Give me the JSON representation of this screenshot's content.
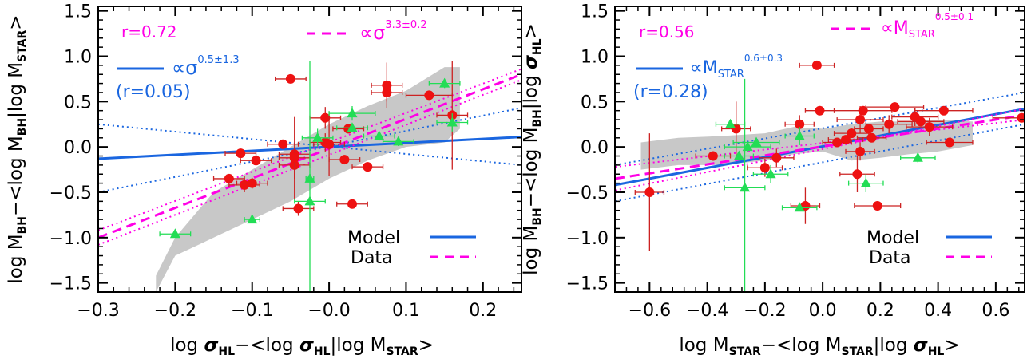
{
  "colors": {
    "model": "#1a66e0",
    "data": "#ff00e6",
    "red_points": "#ee1111",
    "red_error": "#cc2222",
    "green_points": "#22dd55",
    "band": "#c8c8c8"
  },
  "chart_data": [
    {
      "type": "scatter",
      "xlabel": "log σ_HL−<log σ_HL|log M_STAR>",
      "ylabel": "log M_BH−<log M_BH|log M_STAR>",
      "xlim": [
        -0.3,
        0.25
      ],
      "ylim": [
        -1.6,
        1.55
      ],
      "xticks": [
        -0.3,
        -0.2,
        -0.1,
        -0.0,
        0.1,
        0.2
      ],
      "xtick_labels": [
        "−0.3",
        "−0.2",
        "−0.1",
        "−0.0",
        "0.1",
        "0.2"
      ],
      "yticks": [
        -1.5,
        -1.0,
        -0.5,
        0.0,
        0.5,
        1.0,
        1.5
      ],
      "ytick_labels": [
        "−1.5",
        "−1.0",
        "−0.5",
        "0.0",
        "0.5",
        "1.0",
        "1.5"
      ],
      "annotations": {
        "r_data": "r=0.72",
        "data_slope": "∝σ",
        "data_slope_exp": "3.3±0.2",
        "model_slope": "∝σ",
        "model_slope_exp": "0.5±1.3",
        "r_model": "(r=0.05)"
      },
      "legend": {
        "position": "bottom-right",
        "entries": [
          "Model",
          "Data"
        ]
      },
      "grey_band": {
        "upper": [
          [
            -0.225,
            -1.42
          ],
          [
            -0.2,
            -1.0
          ],
          [
            -0.15,
            -0.5
          ],
          [
            -0.1,
            -0.25
          ],
          [
            -0.05,
            0.0
          ],
          [
            0.0,
            0.25
          ],
          [
            0.05,
            0.45
          ],
          [
            0.1,
            0.62
          ],
          [
            0.15,
            0.88
          ],
          [
            0.17,
            0.88
          ]
        ],
        "lower": [
          [
            0.17,
            0.2
          ],
          [
            0.15,
            0.05
          ],
          [
            0.1,
            0.0
          ],
          [
            0.05,
            -0.15
          ],
          [
            0.0,
            -0.35
          ],
          [
            -0.05,
            -0.6
          ],
          [
            -0.1,
            -0.8
          ],
          [
            -0.15,
            -1.0
          ],
          [
            -0.2,
            -1.2
          ],
          [
            -0.225,
            -1.6
          ]
        ]
      },
      "fits": {
        "data_line": {
          "x": [
            -0.3,
            0.25
          ],
          "y": [
            -1.0,
            0.8
          ]
        },
        "data_err_upper": {
          "x": [
            -0.3,
            0.25
          ],
          "y": [
            -0.92,
            0.86
          ]
        },
        "data_err_lower": {
          "x": [
            -0.3,
            0.25
          ],
          "y": [
            -1.08,
            0.74
          ]
        },
        "model_line": {
          "x": [
            -0.3,
            0.25
          ],
          "y": [
            -0.13,
            0.11
          ]
        },
        "model_err_upper": {
          "x": [
            -0.3,
            0.25
          ],
          "y": [
            -0.5,
            0.43
          ]
        },
        "model_err_lower": {
          "x": [
            -0.3,
            0.25
          ],
          "y": [
            0.25,
            -0.2
          ]
        }
      },
      "series": [
        {
          "name": "red",
          "points": [
            [
              -0.115,
              -0.07,
              0.02,
              0.0
            ],
            [
              -0.13,
              -0.35,
              0.02,
              0.05
            ],
            [
              -0.11,
              -0.42,
              0.02,
              0.08
            ],
            [
              -0.1,
              -0.4,
              0.02,
              0.06
            ],
            [
              -0.095,
              -0.15,
              0.02,
              0.05
            ],
            [
              -0.06,
              0.03,
              0.02,
              0.05
            ],
            [
              -0.05,
              0.75,
              0.02,
              0.0
            ],
            [
              -0.045,
              -0.08,
              0.02,
              0.05
            ],
            [
              -0.045,
              -0.2,
              0.02,
              0.15
            ],
            [
              -0.045,
              -0.12,
              0.02,
              0.45
            ],
            [
              -0.04,
              -0.68,
              0.02,
              0.08
            ],
            [
              -0.005,
              0.32,
              0.02,
              0.12
            ],
            [
              -0.005,
              0.05,
              0.02,
              0.1
            ],
            [
              0.0,
              0.03,
              0.02,
              0.35
            ],
            [
              0.02,
              -0.14,
              0.02,
              0.05
            ],
            [
              0.025,
              0.2,
              0.02,
              0.05
            ],
            [
              0.05,
              -0.22,
              0.02,
              0.05
            ],
            [
              0.03,
              -0.63,
              0.02,
              0.0
            ],
            [
              0.075,
              0.68,
              0.02,
              0.25
            ],
            [
              0.075,
              0.6,
              0.02,
              0.1
            ],
            [
              0.13,
              0.57,
              0.03,
              0.05
            ],
            [
              0.16,
              0.35,
              0.02,
              0.6
            ]
          ]
        },
        {
          "name": "green",
          "points": [
            [
              -0.2,
              -0.96,
              0.02,
              0.0
            ],
            [
              -0.1,
              -0.8,
              0.01,
              0.0
            ],
            [
              -0.025,
              -0.35,
              0.005,
              1.3
            ],
            [
              -0.025,
              -0.6,
              0.02,
              0.0
            ],
            [
              -0.015,
              0.1,
              0.02,
              0.1
            ],
            [
              0.03,
              0.21,
              0.02,
              0.05
            ],
            [
              0.03,
              0.37,
              0.03,
              0.08
            ],
            [
              0.065,
              0.12,
              0.02,
              0.05
            ],
            [
              0.09,
              0.06,
              0.02,
              0.05
            ],
            [
              0.15,
              0.7,
              0.02,
              0.05
            ],
            [
              0.16,
              0.27,
              0.02,
              0.1
            ]
          ]
        }
      ]
    },
    {
      "type": "scatter",
      "xlabel": "log M_STAR−<log M_STAR|log σ_HL>",
      "ylabel": "log M_BH−<log M_BH|log σ_HL>",
      "xlim": [
        -0.72,
        0.7
      ],
      "ylim": [
        -1.6,
        1.55
      ],
      "xticks": [
        -0.6,
        -0.4,
        -0.2,
        0.0,
        0.2,
        0.4,
        0.6
      ],
      "xtick_labels": [
        "−0.6",
        "−0.4",
        "−0.2",
        "0.0",
        "0.2",
        "0.4",
        "0.6"
      ],
      "yticks": [
        -1.5,
        -1.0,
        -0.5,
        0.0,
        0.5,
        1.0,
        1.5
      ],
      "ytick_labels": [
        "−1.5",
        "−1.0",
        "−0.5",
        "0.0",
        "0.5",
        "1.0",
        "1.5"
      ],
      "annotations": {
        "r_data": "r=0.56",
        "data_slope": "∝M",
        "data_slope_sub": "STAR",
        "data_slope_exp": "0.5±0.1",
        "model_slope": "∝M",
        "model_slope_sub": "STAR",
        "model_slope_exp": "0.6±0.3",
        "r_model": "(r=0.28)"
      },
      "legend": {
        "position": "bottom-right",
        "entries": [
          "Model",
          "Data"
        ]
      },
      "grey_band": {
        "upper": [
          [
            -0.63,
            0.05
          ],
          [
            -0.5,
            0.1
          ],
          [
            -0.35,
            0.12
          ],
          [
            -0.2,
            0.15
          ],
          [
            -0.1,
            0.22
          ],
          [
            0.0,
            0.2
          ],
          [
            0.1,
            0.25
          ],
          [
            0.2,
            0.28
          ],
          [
            0.3,
            0.28
          ],
          [
            0.4,
            0.3
          ],
          [
            0.52,
            0.28
          ]
        ],
        "lower": [
          [
            0.52,
            0.02
          ],
          [
            0.4,
            -0.05
          ],
          [
            0.3,
            -0.08
          ],
          [
            0.2,
            -0.12
          ],
          [
            0.1,
            -0.15
          ],
          [
            0.0,
            -0.05
          ],
          [
            -0.1,
            -0.08
          ],
          [
            -0.2,
            -0.15
          ],
          [
            -0.35,
            -0.2
          ],
          [
            -0.5,
            -0.2
          ],
          [
            -0.63,
            -0.25
          ]
        ]
      },
      "fits": {
        "data_line": {
          "x": [
            -0.72,
            0.7
          ],
          "y": [
            -0.35,
            0.35
          ]
        },
        "data_err_upper": {
          "x": [
            -0.72,
            0.7
          ],
          "y": [
            -0.22,
            0.3
          ]
        },
        "data_err_lower": {
          "x": [
            -0.72,
            0.7
          ],
          "y": [
            -0.48,
            0.42
          ]
        },
        "model_line": {
          "x": [
            -0.72,
            0.7
          ],
          "y": [
            -0.42,
            0.42
          ]
        },
        "model_err_upper": {
          "x": [
            -0.72,
            0.7
          ],
          "y": [
            -0.2,
            0.6
          ]
        },
        "model_err_lower": {
          "x": [
            -0.72,
            0.7
          ],
          "y": [
            -0.6,
            0.25
          ]
        }
      },
      "series": [
        {
          "name": "red",
          "points": [
            [
              -0.6,
              -0.5,
              0.05,
              0.65
            ],
            [
              -0.38,
              -0.1,
              0.06,
              0.05
            ],
            [
              -0.3,
              0.2,
              0.05,
              0.3
            ],
            [
              -0.2,
              -0.23,
              0.06,
              0.1
            ],
            [
              -0.16,
              -0.12,
              0.06,
              0.1
            ],
            [
              -0.08,
              0.25,
              0.05,
              0.1
            ],
            [
              -0.06,
              -0.65,
              0.05,
              0.2
            ],
            [
              -0.02,
              0.9,
              0.06,
              0.0
            ],
            [
              -0.01,
              0.4,
              0.05,
              0.05
            ],
            [
              0.05,
              0.05,
              0.05,
              0.05
            ],
            [
              0.08,
              0.08,
              0.06,
              0.05
            ],
            [
              0.1,
              0.15,
              0.06,
              0.05
            ],
            [
              0.12,
              -0.3,
              0.06,
              0.2
            ],
            [
              0.13,
              -0.05,
              0.05,
              0.1
            ],
            [
              0.13,
              0.3,
              0.08,
              0.15
            ],
            [
              0.14,
              0.4,
              0.1,
              0.05
            ],
            [
              0.16,
              0.2,
              0.05,
              0.05
            ],
            [
              0.17,
              0.1,
              0.05,
              0.05
            ],
            [
              0.19,
              -0.65,
              0.08,
              0.0
            ],
            [
              0.23,
              0.25,
              0.08,
              0.1
            ],
            [
              0.25,
              0.44,
              0.1,
              0.05
            ],
            [
              0.32,
              0.33,
              0.08,
              0.1
            ],
            [
              0.34,
              0.28,
              0.08,
              0.05
            ],
            [
              0.37,
              0.22,
              0.08,
              0.1
            ],
            [
              0.42,
              0.4,
              0.1,
              0.05
            ],
            [
              0.44,
              0.05,
              0.08,
              0.05
            ],
            [
              0.69,
              0.32,
              0.1,
              0.05
            ]
          ]
        },
        {
          "name": "green",
          "points": [
            [
              -0.32,
              0.25,
              0.05,
              0.05
            ],
            [
              -0.29,
              -0.1,
              0.05,
              0.05
            ],
            [
              -0.27,
              -0.45,
              0.07,
              1.2
            ],
            [
              -0.26,
              0.0,
              0.08,
              0.05
            ],
            [
              -0.23,
              0.05,
              0.08,
              0.05
            ],
            [
              -0.18,
              -0.3,
              0.06,
              0.1
            ],
            [
              -0.08,
              -0.67,
              0.06,
              0.0
            ],
            [
              -0.08,
              0.12,
              0.05,
              0.1
            ],
            [
              0.15,
              -0.4,
              0.06,
              0.1
            ],
            [
              0.33,
              -0.12,
              0.06,
              0.05
            ]
          ]
        }
      ]
    }
  ],
  "axis_text": {
    "left": {
      "xlabel_parts": [
        "log ",
        "σ",
        "HL",
        "−<log ",
        "σ",
        "HL",
        "|log M",
        "STAR",
        ">"
      ],
      "ylabel_parts": [
        "log M",
        "BH",
        "−<log M",
        "BH",
        "|log M",
        "STAR",
        ">"
      ]
    },
    "right": {
      "xlabel_parts": [
        "log M",
        "STAR",
        "−<log M",
        "STAR",
        "|log ",
        "σ",
        "HL",
        ">"
      ],
      "ylabel_parts": [
        "log M",
        "BH",
        "−<log M",
        "BH",
        "|log ",
        "σ",
        "HL",
        ">"
      ]
    }
  }
}
